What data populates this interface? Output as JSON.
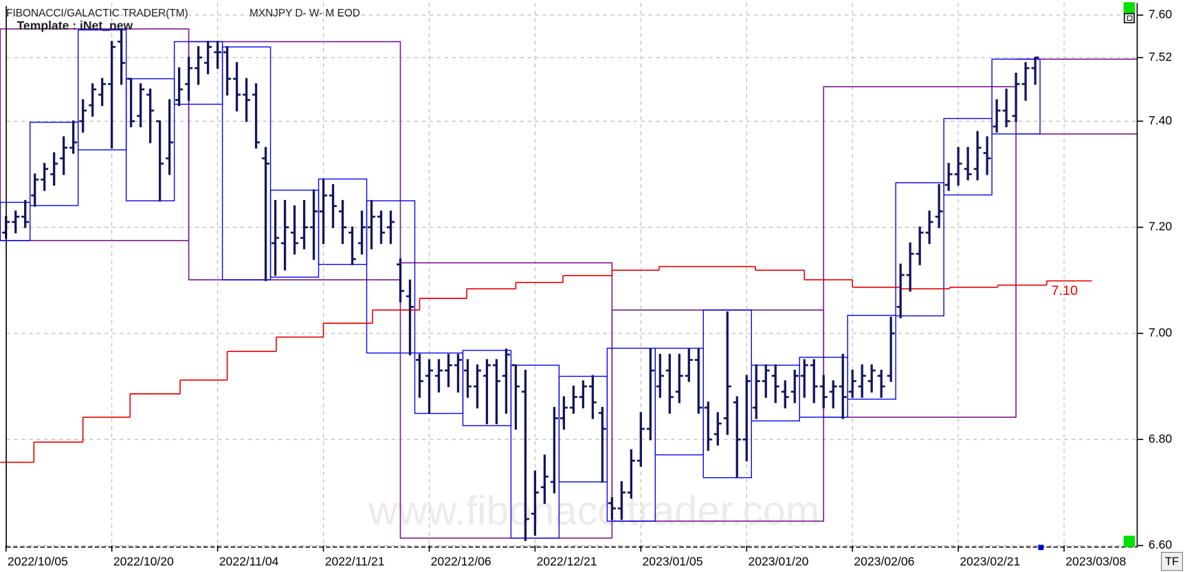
{
  "chart_data": {
    "type": "ohlc",
    "header": {
      "title": "FIBONACCI/GALACTIC TRADER(TM)",
      "symbol": "MXNJPY D- W- M EOD",
      "template": "Template : iNet_new"
    },
    "watermark": "www.fibonaccitrader.com",
    "tf_button": "TF",
    "ylim": [
      6.6,
      7.6
    ],
    "yticks": [
      {
        "value": 7.6,
        "label": "7.60"
      },
      {
        "value": 7.52,
        "label": "7.52"
      },
      {
        "value": 7.4,
        "label": "7.40"
      },
      {
        "value": 7.2,
        "label": "7.20"
      },
      {
        "value": 7.0,
        "label": "7.00"
      },
      {
        "value": 6.8,
        "label": "6.80"
      },
      {
        "value": 6.6,
        "label": "6.60"
      }
    ],
    "xlim": [
      -0.6,
      117.6
    ],
    "xticks": [
      {
        "value": 0,
        "label": "2022/10/05"
      },
      {
        "value": 11,
        "label": "2022/10/20"
      },
      {
        "value": 22,
        "label": "2022/11/04"
      },
      {
        "value": 33,
        "label": "2022/11/21"
      },
      {
        "value": 44,
        "label": "2022/12/06"
      },
      {
        "value": 55,
        "label": "2022/12/21"
      },
      {
        "value": 66,
        "label": "2023/01/05"
      },
      {
        "value": 77,
        "label": "2023/01/20"
      },
      {
        "value": 88,
        "label": "2023/02/06"
      },
      {
        "value": 99,
        "label": "2023/02/21"
      },
      {
        "value": 110,
        "label": "2023/03/08"
      }
    ],
    "grid": true,
    "bars": {
      "color": "#14145e",
      "x": [
        0,
        1,
        2,
        3,
        4,
        5,
        6,
        7,
        8,
        9,
        10,
        11,
        12,
        13,
        14,
        15,
        16,
        17,
        18,
        19,
        20,
        21,
        22,
        23,
        24,
        25,
        26,
        27,
        28,
        29,
        30,
        31,
        32,
        33,
        34,
        35,
        36,
        37,
        38,
        39,
        40,
        41,
        42,
        43,
        44,
        45,
        46,
        47,
        48,
        49,
        50,
        51,
        52,
        53,
        54,
        55,
        56,
        57,
        58,
        59,
        60,
        61,
        62,
        63,
        64,
        65,
        66,
        67,
        68,
        69,
        70,
        71,
        72,
        73,
        74,
        75,
        76,
        77,
        78,
        79,
        80,
        81,
        82,
        83,
        84,
        85,
        86,
        87,
        88,
        89,
        90,
        91,
        92,
        93,
        94,
        95,
        96,
        97,
        98,
        99,
        100,
        101,
        102,
        103,
        104,
        105,
        106,
        107
      ],
      "ohlc": [
        [
          7.19,
          7.22,
          7.18,
          7.21
        ],
        [
          7.21,
          7.23,
          7.19,
          7.22
        ],
        [
          7.22,
          7.25,
          7.2,
          7.21
        ],
        [
          7.26,
          7.3,
          7.24,
          7.29
        ],
        [
          7.29,
          7.32,
          7.27,
          7.31
        ],
        [
          7.3,
          7.34,
          7.28,
          7.32
        ],
        [
          7.33,
          7.37,
          7.3,
          7.35
        ],
        [
          7.35,
          7.4,
          7.34,
          7.36
        ],
        [
          7.4,
          7.44,
          7.38,
          7.42
        ],
        [
          7.43,
          7.47,
          7.41,
          7.46
        ],
        [
          7.45,
          7.48,
          7.43,
          7.47
        ],
        [
          7.47,
          7.55,
          7.35,
          7.54
        ],
        [
          7.55,
          7.57,
          7.47,
          7.51
        ],
        [
          7.48,
          7.48,
          7.39,
          7.4
        ],
        [
          7.41,
          7.47,
          7.39,
          7.46
        ],
        [
          7.45,
          7.46,
          7.36,
          7.42
        ],
        [
          7.4,
          7.4,
          7.25,
          7.32
        ],
        [
          7.33,
          7.44,
          7.3,
          7.36
        ],
        [
          7.44,
          7.5,
          7.43,
          7.46
        ],
        [
          7.47,
          7.52,
          7.44,
          7.5
        ],
        [
          7.5,
          7.54,
          7.47,
          7.52
        ],
        [
          7.51,
          7.55,
          7.49,
          7.54
        ],
        [
          7.53,
          7.55,
          7.5,
          7.53
        ],
        [
          7.53,
          7.54,
          7.45,
          7.48
        ],
        [
          7.48,
          7.51,
          7.42,
          7.45
        ],
        [
          7.45,
          7.48,
          7.4,
          7.44
        ],
        [
          7.45,
          7.47,
          7.35,
          7.36
        ],
        [
          7.33,
          7.35,
          7.1,
          7.32
        ],
        [
          7.17,
          7.25,
          7.11,
          7.18
        ],
        [
          7.17,
          7.25,
          7.12,
          7.2
        ],
        [
          7.19,
          7.24,
          7.15,
          7.17
        ],
        [
          7.18,
          7.25,
          7.16,
          7.2
        ],
        [
          7.2,
          7.27,
          7.14,
          7.23
        ],
        [
          7.23,
          7.29,
          7.17,
          7.26
        ],
        [
          7.26,
          7.28,
          7.2,
          7.24
        ],
        [
          7.23,
          7.25,
          7.17,
          7.2
        ],
        [
          7.19,
          7.2,
          7.13,
          7.14
        ],
        [
          7.17,
          7.23,
          7.15,
          7.2
        ],
        [
          7.2,
          7.25,
          7.16,
          7.22
        ],
        [
          7.22,
          7.23,
          7.17,
          7.19
        ],
        [
          7.2,
          7.23,
          7.17,
          7.21
        ],
        [
          7.13,
          7.14,
          7.06,
          7.08
        ],
        [
          7.07,
          7.1,
          6.96,
          7.05
        ],
        [
          6.95,
          6.96,
          6.88,
          6.91
        ],
        [
          6.92,
          6.95,
          6.85,
          6.93
        ],
        [
          6.92,
          6.95,
          6.89,
          6.93
        ],
        [
          6.93,
          6.96,
          6.9,
          6.94
        ],
        [
          6.94,
          6.96,
          6.89,
          6.95
        ],
        [
          6.93,
          6.95,
          6.88,
          6.9
        ],
        [
          6.9,
          6.94,
          6.86,
          6.93
        ],
        [
          6.92,
          6.95,
          6.83,
          6.94
        ],
        [
          6.94,
          6.95,
          6.83,
          6.91
        ],
        [
          6.92,
          6.97,
          6.85,
          6.96
        ],
        [
          6.94,
          6.94,
          6.82,
          6.9
        ],
        [
          6.89,
          6.93,
          6.61,
          6.65
        ],
        [
          6.66,
          6.74,
          6.62,
          6.7
        ],
        [
          6.71,
          6.77,
          6.68,
          6.73
        ],
        [
          6.72,
          6.86,
          6.7,
          6.84
        ],
        [
          6.84,
          6.88,
          6.82,
          6.86
        ],
        [
          6.86,
          6.9,
          6.85,
          6.88
        ],
        [
          6.88,
          6.91,
          6.86,
          6.9
        ],
        [
          6.9,
          6.92,
          6.84,
          6.87
        ],
        [
          6.85,
          6.86,
          6.72,
          6.82
        ],
        [
          6.68,
          6.69,
          6.65,
          6.67
        ],
        [
          6.67,
          6.72,
          6.65,
          6.7
        ],
        [
          6.7,
          6.78,
          6.69,
          6.76
        ],
        [
          6.76,
          6.85,
          6.75,
          6.82
        ],
        [
          6.82,
          6.97,
          6.8,
          6.93
        ],
        [
          6.9,
          6.96,
          6.88,
          6.92
        ],
        [
          6.93,
          6.96,
          6.85,
          6.88
        ],
        [
          6.89,
          6.96,
          6.87,
          6.92
        ],
        [
          6.92,
          6.97,
          6.91,
          6.95
        ],
        [
          6.95,
          6.97,
          6.85,
          6.86
        ],
        [
          6.86,
          6.87,
          6.78,
          6.8
        ],
        [
          6.81,
          6.85,
          6.79,
          6.83
        ],
        [
          6.84,
          7.04,
          6.81,
          6.9
        ],
        [
          6.87,
          6.88,
          6.73,
          6.8
        ],
        [
          6.8,
          6.92,
          6.76,
          6.91
        ],
        [
          6.86,
          6.94,
          6.84,
          6.91
        ],
        [
          6.91,
          6.94,
          6.88,
          6.93
        ],
        [
          6.92,
          6.94,
          6.87,
          6.9
        ],
        [
          6.89,
          6.91,
          6.86,
          6.88
        ],
        [
          6.89,
          6.93,
          6.87,
          6.92
        ],
        [
          6.92,
          6.95,
          6.88,
          6.94
        ],
        [
          6.94,
          6.95,
          6.87,
          6.9
        ],
        [
          6.9,
          6.92,
          6.86,
          6.88
        ],
        [
          6.89,
          6.91,
          6.86,
          6.9
        ],
        [
          6.9,
          6.96,
          6.84,
          6.88
        ],
        [
          6.89,
          6.93,
          6.88,
          6.91
        ],
        [
          6.9,
          6.94,
          6.88,
          6.92
        ],
        [
          6.91,
          6.94,
          6.89,
          6.93
        ],
        [
          6.92,
          6.93,
          6.88,
          6.9
        ],
        [
          6.92,
          7.03,
          6.91,
          7.0
        ],
        [
          7.05,
          7.13,
          7.03,
          7.11
        ],
        [
          7.11,
          7.17,
          7.08,
          7.15
        ],
        [
          7.15,
          7.2,
          7.13,
          7.19
        ],
        [
          7.19,
          7.23,
          7.17,
          7.21
        ],
        [
          7.22,
          7.28,
          7.2,
          7.23
        ],
        [
          7.28,
          7.32,
          7.27,
          7.3
        ],
        [
          7.3,
          7.35,
          7.28,
          7.32
        ],
        [
          7.31,
          7.35,
          7.29,
          7.3
        ],
        [
          7.31,
          7.38,
          7.29,
          7.35
        ],
        [
          7.34,
          7.37,
          7.3,
          7.33
        ],
        [
          7.39,
          7.44,
          7.38,
          7.42
        ],
        [
          7.42,
          7.46,
          7.39,
          7.4
        ],
        [
          7.41,
          7.49,
          7.4,
          7.47
        ],
        [
          7.47,
          7.51,
          7.44,
          7.5
        ],
        [
          7.5,
          7.52,
          7.47,
          7.52
        ]
      ]
    },
    "weekly_boxes": {
      "color": "#0a0ae6",
      "start": [
        -0.6,
        2.5,
        7.5,
        12.5,
        17.5,
        22.5,
        27.5,
        32.5,
        37.5,
        42.5,
        47.5,
        52.5,
        57.5,
        62.5,
        67.5,
        72.5,
        77.5,
        82.5,
        87.5,
        92.5,
        97.5,
        102.5
      ],
      "end": [
        2.5,
        7.5,
        12.5,
        17.5,
        22.5,
        27.5,
        32.5,
        37.5,
        42.5,
        47.5,
        52.5,
        57.5,
        62.5,
        67.5,
        72.5,
        77.5,
        82.5,
        87.5,
        92.5,
        97.5,
        102.5,
        107.5
      ],
      "high": [
        7.247,
        7.398,
        7.572,
        7.48,
        7.55,
        7.54,
        7.27,
        7.291,
        7.25,
        6.963,
        6.968,
        6.94,
        6.919,
        6.972,
        6.972,
        7.044,
        6.94,
        6.955,
        7.034,
        7.284,
        7.405,
        7.517
      ],
      "low": [
        7.175,
        7.241,
        7.346,
        7.25,
        7.432,
        7.101,
        7.106,
        7.13,
        6.963,
        6.849,
        6.826,
        6.614,
        6.72,
        6.646,
        6.771,
        6.728,
        6.835,
        6.842,
        6.876,
        7.033,
        7.261,
        7.376
      ]
    },
    "monthly_boxes": {
      "color": "#7a1d8c",
      "start": [
        -0.6,
        19,
        41,
        63,
        85
      ],
      "end": [
        19,
        41,
        63,
        85,
        105
      ],
      "high": [
        7.574,
        7.55,
        7.133,
        7.044,
        7.465
      ],
      "low": [
        7.175,
        7.101,
        6.614,
        6.646,
        6.842
      ]
    },
    "current_month": {
      "color": "#7a1d8c",
      "start": 105,
      "high": 7.517,
      "low": 7.376
    },
    "red_line": {
      "color": "#e60000",
      "label": "7.10",
      "x_start": [
        -0.6,
        2.9,
        8.0,
        12.9,
        18.1,
        23.0,
        28.1,
        33.0,
        38.1,
        43.0,
        47.9,
        53.0,
        57.9,
        63.0,
        67.9,
        77.9,
        83.0,
        88.0,
        93.0,
        98.1,
        103.1,
        108.2
      ],
      "x_end": [
        2.9,
        8.0,
        12.9,
        18.1,
        23.0,
        28.1,
        33.0,
        38.1,
        43.0,
        47.9,
        53.0,
        57.9,
        63.0,
        67.9,
        77.9,
        83.0,
        88.0,
        93.0,
        98.1,
        103.1,
        108.2,
        112.9
      ],
      "values": [
        6.757,
        6.795,
        6.842,
        6.886,
        6.912,
        6.966,
        6.993,
        7.019,
        7.044,
        7.066,
        7.084,
        7.096,
        7.109,
        7.119,
        7.126,
        7.119,
        7.101,
        7.087,
        7.084,
        7.087,
        7.091,
        7.099
      ]
    }
  }
}
